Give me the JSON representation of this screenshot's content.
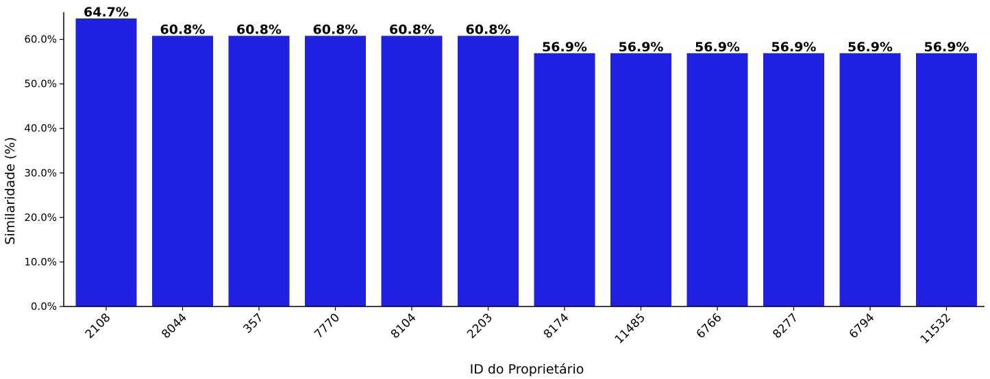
{
  "chart_data": {
    "type": "bar",
    "categories": [
      "2108",
      "8044",
      "357",
      "7770",
      "8104",
      "2203",
      "8174",
      "11485",
      "6766",
      "8277",
      "6794",
      "11532"
    ],
    "values": [
      64.7,
      60.8,
      60.8,
      60.8,
      60.8,
      60.8,
      56.9,
      56.9,
      56.9,
      56.9,
      56.9,
      56.9
    ],
    "value_labels": [
      "64.7%",
      "60.8%",
      "60.8%",
      "60.8%",
      "60.8%",
      "60.8%",
      "56.9%",
      "56.9%",
      "56.9%",
      "56.9%",
      "56.9%",
      "56.9%"
    ],
    "title": "",
    "xlabel": "ID do Proprietário",
    "ylabel": "Similaridade (%)",
    "ylim": [
      0,
      64.7
    ],
    "yticks": [
      0,
      10,
      20,
      30,
      40,
      50,
      60
    ],
    "ytick_labels": [
      "0.0%",
      "10.0%",
      "20.0%",
      "30.0%",
      "40.0%",
      "50.0%",
      "60.0%"
    ],
    "bar_color": "#2020e0",
    "grid": false,
    "legend": "none"
  }
}
